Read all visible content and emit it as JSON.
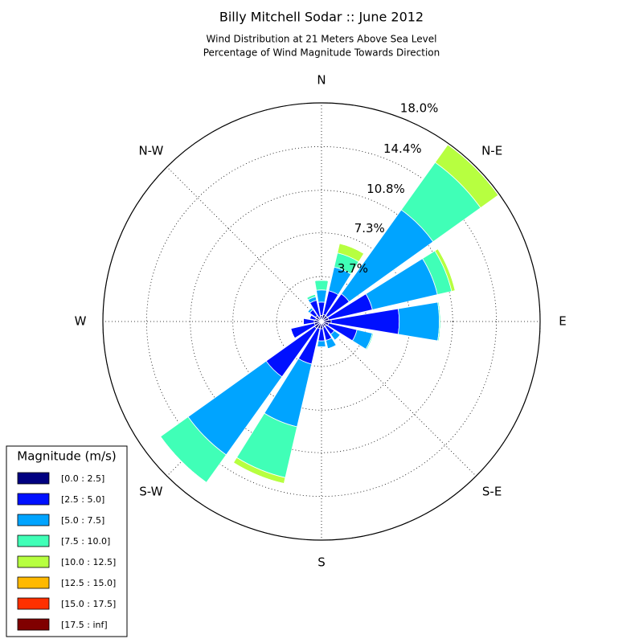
{
  "chart_data": {
    "type": "windrose",
    "title": "Billy Mitchell Sodar :: June 2012",
    "subtitle": [
      "Wind Distribution at 21 Meters Above Sea Level",
      "Percentage of Wind Magnitude Towards Direction"
    ],
    "categories": [
      "N",
      null,
      "N-E",
      null,
      "E",
      null,
      "S-E",
      null,
      "S",
      null,
      "S-W",
      null,
      "W",
      null,
      "N-W",
      null
    ],
    "ylim": [
      0,
      18.0
    ],
    "yticks": [
      {
        "value": 3.7,
        "label": "3.7%"
      },
      {
        "value": 7.3,
        "label": "7.3%"
      },
      {
        "value": 10.8,
        "label": "10.8%"
      },
      {
        "value": 14.4,
        "label": "14.4%"
      },
      {
        "value": 18.0,
        "label": "18.0%"
      }
    ],
    "grid": true,
    "legend_title": "Magnitude (m/s)",
    "legend_position": "lower-left",
    "series": [
      {
        "name": "[0.0 : 2.5]",
        "color": "#000080",
        "values": [
          0.5,
          0.6,
          0.6,
          0.6,
          0.8,
          0.6,
          0.5,
          0.5,
          0.6,
          0.6,
          0.7,
          0.6,
          0.6,
          0.5,
          0.6,
          0.4
        ]
      },
      {
        "name": "[2.5 : 5.0]",
        "color": "#0010ff",
        "values": [
          1.1,
          2.0,
          2.2,
          3.7,
          5.6,
          2.4,
          0.8,
          1.1,
          1.0,
          3.0,
          4.9,
          2.0,
          0.9,
          0.5,
          0.6,
          1.4
        ]
      },
      {
        "name": "[5.0 : 7.5]",
        "color": "#00a4ff",
        "values": [
          1.0,
          2.0,
          8.5,
          5.5,
          3.3,
          1.3,
          0.6,
          0.7,
          0.5,
          5.3,
          7.9,
          0,
          0,
          0,
          0.2,
          0.3
        ]
      },
      {
        "name": "[7.5 : 10.0]",
        "color": "#40ffb7",
        "values": [
          0.8,
          1.2,
          4.8,
          1.2,
          0.1,
          0.1,
          0,
          0,
          0,
          4.3,
          2.8,
          0,
          0,
          0,
          0,
          0.2
        ]
      },
      {
        "name": "[10.0 : 12.5]",
        "color": "#b7ff40",
        "values": [
          0,
          0.8,
          1.8,
          0.3,
          0,
          0,
          0,
          0,
          0,
          0.5,
          0,
          0,
          0,
          0,
          0,
          0
        ]
      },
      {
        "name": "[12.5 : 15.0]",
        "color": "#ffb900",
        "values": [
          0,
          0,
          0,
          0,
          0,
          0,
          0,
          0,
          0,
          0,
          0,
          0,
          0,
          0,
          0,
          0
        ]
      },
      {
        "name": "[15.0 : 17.5]",
        "color": "#ff3000",
        "values": [
          0,
          0,
          0,
          0,
          0,
          0,
          0,
          0,
          0,
          0,
          0,
          0,
          0,
          0,
          0,
          0
        ]
      },
      {
        "name": "[17.5 : inf]",
        "color": "#800000",
        "values": [
          0,
          0,
          0,
          0,
          0,
          0,
          0,
          0,
          0,
          0,
          0,
          0,
          0,
          0,
          0,
          0
        ]
      }
    ]
  }
}
